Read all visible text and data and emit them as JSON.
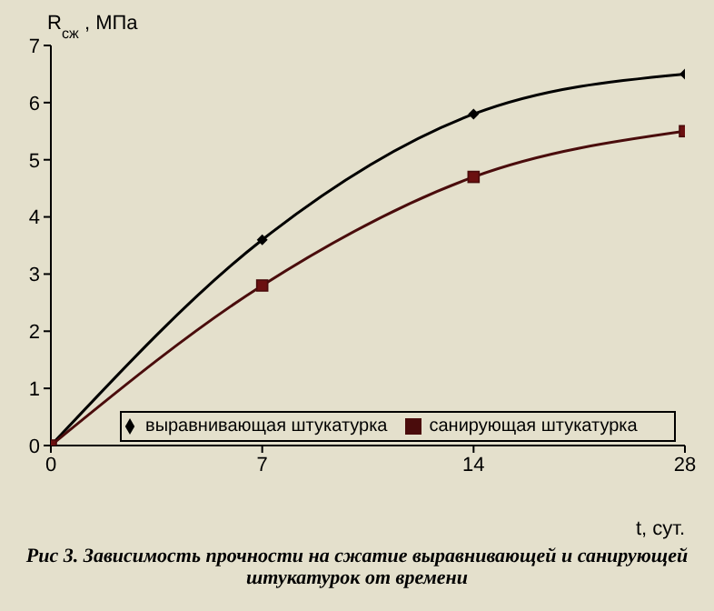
{
  "chart_data": {
    "type": "line",
    "xlabel": "t, сут.",
    "ylabel": "R$_{сж}$, МПа",
    "categories": [
      "0",
      "7",
      "14",
      "28"
    ],
    "series": [
      {
        "name": "выравнивающая штукатурка",
        "color": "#000000",
        "marker": "diamond",
        "values": [
          0,
          3.6,
          5.8,
          6.5
        ]
      },
      {
        "name": "санирующая штукатурка",
        "color": "#4a0c0c",
        "marker": "square",
        "values": [
          0,
          2.8,
          4.7,
          5.5
        ]
      }
    ],
    "ylim": [
      0,
      7
    ],
    "yticks": [
      0,
      1,
      2,
      3,
      4,
      5,
      6,
      7
    ],
    "legend": "bottom",
    "line_style": "solid",
    "annotations": [
      "Рис 3. Зависимость прочности на сжатие выравнивающей и санирующей штукатурок от времени"
    ]
  }
}
